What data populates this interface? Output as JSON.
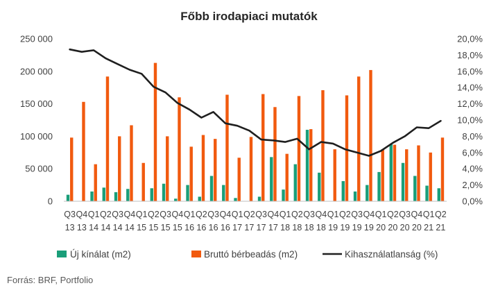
{
  "chart_data": {
    "type": "bar",
    "title": "Főbb irodapiaci mutatók",
    "categories": [
      "Q3 13",
      "Q4 13",
      "Q1 14",
      "Q2 14",
      "Q3 14",
      "Q4 14",
      "Q1 15",
      "Q2 15",
      "Q3 15",
      "Q4 15",
      "Q1 16",
      "Q2 16",
      "Q3 16",
      "Q4 16",
      "Q1 17",
      "Q2 17",
      "Q3 17",
      "Q4 17",
      "Q1 18",
      "Q2 18",
      "Q3 18",
      "Q4 18",
      "Q1 19",
      "Q2 19",
      "Q3 19",
      "Q4 19",
      "Q1 20",
      "Q2 20",
      "Q3 20",
      "Q4 20",
      "Q1 21",
      "Q2 21"
    ],
    "x_tick_top": [
      "Q3",
      "Q4",
      "Q1",
      "Q2",
      "Q3",
      "Q4",
      "Q1",
      "Q2",
      "Q3",
      "Q4",
      "Q1",
      "Q2",
      "Q3",
      "Q4",
      "Q1",
      "Q2",
      "Q3",
      "Q4",
      "Q1",
      "Q2",
      "Q3",
      "Q4",
      "Q1",
      "Q2",
      "Q3",
      "Q4",
      "Q1",
      "Q2",
      "Q3",
      "Q4",
      "Q1",
      "Q2"
    ],
    "x_tick_bottom": [
      "13",
      "13",
      "14",
      "14",
      "14",
      "14",
      "15",
      "15",
      "15",
      "15",
      "16",
      "16",
      "16",
      "16",
      "17",
      "17",
      "17",
      "17",
      "18",
      "18",
      "18",
      "18",
      "19",
      "19",
      "19",
      "19",
      "20",
      "20",
      "20",
      "20",
      "21",
      "21"
    ],
    "series": [
      {
        "name": "Új kínálat (m2)",
        "type": "bar",
        "axis": "left",
        "color": "#1a9e79",
        "values": [
          10000,
          0,
          15000,
          21000,
          14000,
          19000,
          0,
          20000,
          27000,
          4000,
          25000,
          7000,
          39000,
          25000,
          5000,
          0,
          7000,
          68000,
          18000,
          57000,
          110000,
          44000,
          0,
          31000,
          15000,
          25000,
          45000,
          88000,
          59000,
          39000,
          24000,
          20000
        ]
      },
      {
        "name": "Bruttó bérbeadás (m2)",
        "type": "bar",
        "axis": "left",
        "color": "#f15a0f",
        "values": [
          98000,
          153000,
          57000,
          192000,
          100000,
          117000,
          59000,
          213000,
          100000,
          160000,
          84000,
          102000,
          96000,
          164000,
          67000,
          99000,
          165000,
          145000,
          73000,
          162000,
          111000,
          171000,
          80000,
          163000,
          192000,
          202000,
          80000,
          87000,
          80000,
          86000,
          75000,
          98000
        ]
      },
      {
        "name": "Kihasználatlanság (%)",
        "type": "line",
        "axis": "right",
        "color": "#1f1f1f",
        "values": [
          18.7,
          18.4,
          18.6,
          17.6,
          16.9,
          16.2,
          15.7,
          14.1,
          13.4,
          12.1,
          11.3,
          10.3,
          11.0,
          9.6,
          9.3,
          8.7,
          7.6,
          7.5,
          7.3,
          7.7,
          6.4,
          7.3,
          7.1,
          6.4,
          6.0,
          5.6,
          6.2,
          7.2,
          8.0,
          9.1,
          9.0,
          9.9
        ]
      }
    ],
    "y_left": {
      "min": 0,
      "max": 250000,
      "ticks": [
        "0",
        "50 000",
        "100 000",
        "150 000",
        "200 000",
        "250 000"
      ]
    },
    "y_right": {
      "min": 0,
      "max": 20,
      "ticks": [
        "0,0%",
        "2,0%",
        "4,0%",
        "6,0%",
        "8,0%",
        "10,0%",
        "12,0%",
        "14,0%",
        "16,0%",
        "18,0%",
        "20,0%"
      ]
    },
    "grid": false,
    "legend_position": "bottom",
    "source": "Forrás: BRF, Portfolio"
  }
}
